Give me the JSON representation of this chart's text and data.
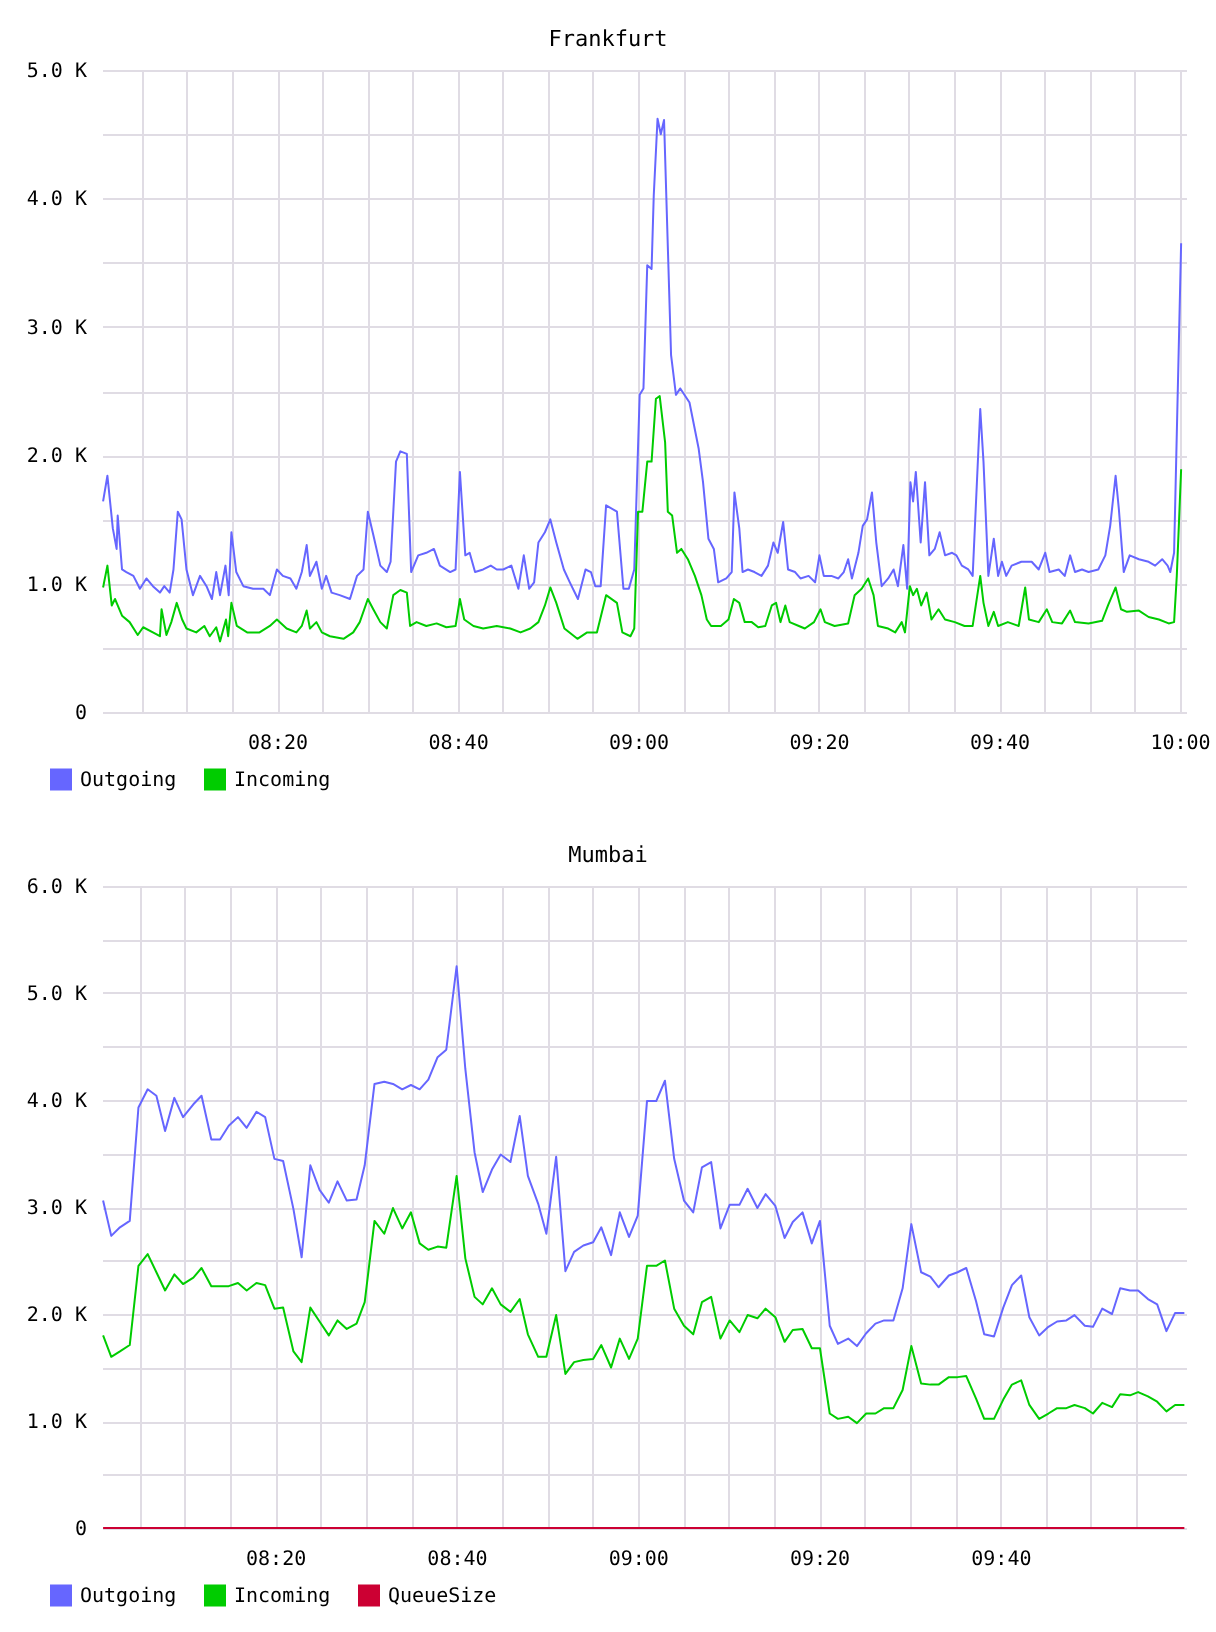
{
  "chart_data": [
    {
      "type": "line",
      "title": "Frankfurt",
      "xlim": [
        8.01,
        10.012
      ],
      "ylim": [
        0,
        5000
      ],
      "xticks": [
        {
          "value": 8.0833,
          "label": null
        },
        {
          "value": 8.1667,
          "label": null
        },
        {
          "value": 8.25,
          "label": null
        },
        {
          "value": 8.3333,
          "label": "08:20"
        },
        {
          "value": 8.4167,
          "label": null
        },
        {
          "value": 8.5,
          "label": null
        },
        {
          "value": 8.5833,
          "label": null
        },
        {
          "value": 8.6667,
          "label": "08:40"
        },
        {
          "value": 8.75,
          "label": null
        },
        {
          "value": 8.8333,
          "label": null
        },
        {
          "value": 8.9167,
          "label": null
        },
        {
          "value": 9,
          "label": "09:00"
        },
        {
          "value": 9.0833,
          "label": null
        },
        {
          "value": 9.1667,
          "label": null
        },
        {
          "value": 9.25,
          "label": null
        },
        {
          "value": 9.3333,
          "label": "09:20"
        },
        {
          "value": 9.4167,
          "label": null
        },
        {
          "value": 9.5,
          "label": null
        },
        {
          "value": 9.5833,
          "label": null
        },
        {
          "value": 9.6667,
          "label": "09:40"
        },
        {
          "value": 9.75,
          "label": null
        },
        {
          "value": 9.8333,
          "label": null
        },
        {
          "value": 9.9167,
          "label": null
        },
        {
          "value": 10,
          "label": "10:00"
        }
      ],
      "yticks": [
        0,
        {
          "value": 500,
          "label": null
        },
        {
          "value": 1000,
          "label": "1.0 K"
        },
        {
          "value": 1500,
          "label": null
        },
        {
          "value": 2000,
          "label": "2.0 K"
        },
        {
          "value": 2500,
          "label": null
        },
        {
          "value": 3000,
          "label": "3.0 K"
        },
        {
          "value": 3500,
          "label": null
        },
        {
          "value": 4000,
          "label": "4.0 K"
        },
        {
          "value": 4500,
          "label": null
        },
        {
          "value": 5000,
          "label": "5.0 K"
        }
      ],
      "grid": true,
      "legend": "bottom left",
      "series": [
        {
          "name": "Outgoing",
          "color": "#6666ff",
          "x": [
            8.012,
            8.02,
            8.03,
            8.037,
            8.039,
            8.047,
            8.055,
            8.068,
            8.08,
            8.092,
            8.104,
            8.117,
            8.125,
            8.135,
            8.142,
            8.15,
            8.157,
            8.166,
            8.178,
            8.191,
            8.203,
            8.213,
            8.221,
            8.228,
            8.238,
            8.244,
            8.249,
            8.258,
            8.271,
            8.289,
            8.308,
            8.32,
            8.333,
            8.344,
            8.358,
            8.369,
            8.379,
            8.388,
            8.394,
            8.406,
            8.416,
            8.424,
            8.434,
            8.449,
            8.468,
            8.481,
            8.493,
            8.501,
            8.511,
            8.524,
            8.536,
            8.543,
            8.553,
            8.561,
            8.573,
            8.581,
            8.594,
            8.609,
            8.623,
            8.634,
            8.653,
            8.663,
            8.671,
            8.681,
            8.689,
            8.699,
            8.714,
            8.728,
            8.739,
            8.751,
            8.766,
            8.779,
            8.789,
            8.799,
            8.808,
            8.816,
            8.828,
            8.838,
            8.849,
            8.863,
            8.874,
            8.889,
            8.903,
            8.913,
            8.921,
            8.931,
            8.941,
            8.961,
            8.973,
            8.983,
            8.993,
            9.003,
            9.01,
            9.017,
            9.025,
            9.029,
            9.036,
            9.042,
            9.048,
            9.061,
            9.07,
            9.078,
            9.095,
            9.112,
            9.12,
            9.13,
            9.14,
            9.148,
            9.163,
            9.173,
            9.178,
            9.187,
            9.193,
            9.203,
            9.215,
            9.228,
            9.24,
            9.25,
            9.258,
            9.268,
            9.277,
            9.29,
            9.3,
            9.315,
            9.327,
            9.335,
            9.343,
            9.357,
            9.37,
            9.38,
            9.388,
            9.395,
            9.407,
            9.415,
            9.423,
            9.432,
            9.44,
            9.45,
            9.462,
            9.472,
            9.48,
            9.49,
            9.497,
            9.503,
            9.508,
            9.513,
            9.522,
            9.53,
            9.538,
            9.548,
            9.557,
            9.567,
            9.58,
            9.588,
            9.598,
            9.61,
            9.618,
            9.632,
            9.638,
            9.647,
            9.657,
            9.665,
            9.672,
            9.68,
            9.69,
            9.708,
            9.727,
            9.74,
            9.752,
            9.76,
            9.777,
            9.788,
            9.798,
            9.807,
            9.82,
            9.832,
            9.85,
            9.863,
            9.872,
            9.882,
            9.888,
            9.897,
            9.908,
            9.925,
            9.943,
            9.955,
            9.968,
            9.978,
            9.983,
            9.99,
            10.003
          ],
          "values": [
            1640,
            1840,
            1430,
            1270,
            1530,
            1110,
            1090,
            1060,
            960,
            1040,
            980,
            930,
            980,
            930,
            1110,
            1560,
            1500,
            1110,
            910,
            1060,
            980,
            880,
            1090,
            910,
            1140,
            910,
            1400,
            1090,
            980,
            960,
            960,
            910,
            1110,
            1060,
            1040,
            960,
            1090,
            1300,
            1060,
            1170,
            960,
            1060,
            930,
            910,
            880,
            1060,
            1110,
            1560,
            1380,
            1140,
            1090,
            1170,
            1950,
            2030,
            2010,
            1090,
            1220,
            1240,
            1270,
            1140,
            1090,
            1110,
            1870,
            1220,
            1240,
            1090,
            1110,
            1140,
            1110,
            1110,
            1140,
            960,
            1220,
            960,
            1010,
            1320,
            1400,
            1500,
            1320,
            1110,
            1010,
            880,
            1110,
            1090,
            980,
            980,
            1610,
            1560,
            960,
            960,
            1110,
            2470,
            2520,
            3480,
            3450,
            4020,
            4620,
            4500,
            4610,
            2780,
            2470,
            2520,
            2410,
            2050,
            1790,
            1350,
            1270,
            1010,
            1040,
            1090,
            1710,
            1430,
            1090,
            1110,
            1090,
            1060,
            1140,
            1320,
            1240,
            1480,
            1110,
            1090,
            1040,
            1060,
            1010,
            1220,
            1060,
            1060,
            1040,
            1090,
            1190,
            1040,
            1240,
            1450,
            1500,
            1710,
            1320,
            980,
            1040,
            1110,
            980,
            1300,
            960,
            1790,
            1640,
            1870,
            1320,
            1790,
            1220,
            1270,
            1400,
            1220,
            1240,
            1220,
            1140,
            1110,
            1060,
            2360,
            1950,
            1060,
            1350,
            1060,
            1170,
            1060,
            1140,
            1170,
            1170,
            1110,
            1240,
            1090,
            1110,
            1060,
            1220,
            1090,
            1110,
            1090,
            1110,
            1220,
            1450,
            1840,
            1580,
            1090,
            1220,
            1190,
            1170,
            1140,
            1190,
            1140,
            1090,
            1240,
            3650
          ]
        },
        {
          "name": "Incoming",
          "color": "#00cc00",
          "x": [
            8.012,
            8.02,
            8.028,
            8.034,
            8.039,
            8.047,
            8.061,
            8.076,
            8.086,
            8.104,
            8.117,
            8.12,
            8.129,
            8.138,
            8.148,
            8.158,
            8.166,
            8.184,
            8.199,
            8.209,
            8.221,
            8.228,
            8.239,
            8.243,
            8.249,
            8.259,
            8.278,
            8.301,
            8.32,
            8.333,
            8.351,
            8.369,
            8.379,
            8.388,
            8.394,
            8.406,
            8.416,
            8.431,
            8.456,
            8.474,
            8.486,
            8.501,
            8.511,
            8.524,
            8.536,
            8.548,
            8.561,
            8.573,
            8.579,
            8.591,
            8.609,
            8.628,
            8.646,
            8.663,
            8.671,
            8.679,
            8.696,
            8.714,
            8.739,
            8.764,
            8.783,
            8.801,
            8.816,
            8.828,
            8.838,
            8.849,
            8.864,
            8.888,
            8.906,
            8.924,
            8.941,
            8.961,
            8.971,
            8.986,
            8.993,
            9.0,
            9.008,
            9.017,
            9.025,
            9.033,
            9.04,
            9.05,
            9.055,
            9.063,
            9.072,
            9.08,
            9.092,
            9.105,
            9.117,
            9.127,
            9.135,
            9.153,
            9.167,
            9.177,
            9.187,
            9.197,
            9.21,
            9.222,
            9.235,
            9.247,
            9.255,
            9.263,
            9.272,
            9.28,
            9.297,
            9.308,
            9.325,
            9.337,
            9.345,
            9.363,
            9.388,
            9.4,
            9.413,
            9.425,
            9.435,
            9.443,
            9.462,
            9.475,
            9.487,
            9.493,
            9.502,
            9.508,
            9.515,
            9.523,
            9.533,
            9.542,
            9.555,
            9.567,
            9.585,
            9.603,
            9.618,
            9.632,
            9.638,
            9.647,
            9.657,
            9.665,
            9.683,
            9.703,
            9.715,
            9.722,
            9.74,
            9.755,
            9.765,
            9.783,
            9.798,
            9.807,
            9.832,
            9.857,
            9.868,
            9.882,
            9.892,
            9.903,
            9.925,
            9.943,
            9.962,
            9.98,
            9.99,
            9.995,
            10.003
          ],
          "values": [
            970,
            1140,
            830,
            880,
            830,
            750,
            700,
            600,
            660,
            620,
            590,
            800,
            600,
            700,
            850,
            720,
            650,
            620,
            670,
            590,
            660,
            550,
            720,
            590,
            850,
            670,
            620,
            620,
            670,
            720,
            650,
            620,
            670,
            790,
            650,
            700,
            620,
            590,
            570,
            620,
            700,
            880,
            800,
            700,
            650,
            910,
            950,
            930,
            670,
            700,
            670,
            690,
            660,
            670,
            880,
            720,
            670,
            650,
            670,
            650,
            620,
            650,
            700,
            830,
            970,
            850,
            650,
            570,
            620,
            620,
            910,
            850,
            620,
            590,
            650,
            1560,
            1560,
            1950,
            1950,
            2440,
            2460,
            2100,
            1560,
            1530,
            1240,
            1270,
            1190,
            1060,
            910,
            720,
            670,
            670,
            720,
            880,
            850,
            700,
            700,
            660,
            670,
            830,
            850,
            700,
            830,
            700,
            670,
            650,
            700,
            800,
            700,
            670,
            690,
            910,
            960,
            1040,
            910,
            670,
            650,
            620,
            700,
            620,
            980,
            910,
            960,
            830,
            930,
            720,
            800,
            720,
            700,
            670,
            670,
            1060,
            850,
            670,
            780,
            670,
            700,
            670,
            970,
            720,
            700,
            800,
            700,
            690,
            790,
            700,
            690,
            710,
            830,
            970,
            800,
            780,
            790,
            740,
            720,
            690,
            700,
            1060,
            1890
          ]
        }
      ]
    },
    {
      "type": "line",
      "title": "Mumbai",
      "xlim": [
        8.015,
        10.008
      ],
      "ylim": [
        0,
        6000
      ],
      "xticks": [
        {
          "value": 8.0833,
          "label": null
        },
        {
          "value": 8.1667,
          "label": null
        },
        {
          "value": 8.25,
          "label": null
        },
        {
          "value": 8.3333,
          "label": "08:20"
        },
        {
          "value": 8.4167,
          "label": null
        },
        {
          "value": 8.5,
          "label": null
        },
        {
          "value": 8.5833,
          "label": null
        },
        {
          "value": 8.6667,
          "label": "08:40"
        },
        {
          "value": 8.75,
          "label": null
        },
        {
          "value": 8.8333,
          "label": null
        },
        {
          "value": 8.9167,
          "label": null
        },
        {
          "value": 9,
          "label": "09:00"
        },
        {
          "value": 9.0833,
          "label": null
        },
        {
          "value": 9.1667,
          "label": null
        },
        {
          "value": 9.25,
          "label": null
        },
        {
          "value": 9.3333,
          "label": "09:20"
        },
        {
          "value": 9.4167,
          "label": null
        },
        {
          "value": 9.5,
          "label": null
        },
        {
          "value": 9.5833,
          "label": null
        },
        {
          "value": 9.6667,
          "label": "09:40"
        },
        {
          "value": 9.75,
          "label": null
        },
        {
          "value": 9.8333,
          "label": null
        },
        {
          "value": 9.9167,
          "label": null
        }
      ],
      "yticks": [
        0,
        {
          "value": 500,
          "label": null
        },
        {
          "value": 1000,
          "label": "1.0 K"
        },
        {
          "value": 1500,
          "label": null
        },
        {
          "value": 2000,
          "label": "2.0 K"
        },
        {
          "value": 2500,
          "label": null
        },
        {
          "value": 3000,
          "label": "3.0 K"
        },
        {
          "value": 3500,
          "label": null
        },
        {
          "value": 4000,
          "label": "4.0 K"
        },
        {
          "value": 4500,
          "label": null
        },
        {
          "value": 5000,
          "label": "5.0 K"
        },
        {
          "value": 5500,
          "label": null
        },
        {
          "value": 6000,
          "label": "6.0 K"
        }
      ],
      "grid": true,
      "legend": "bottom left",
      "x": [
        8.017,
        8.032,
        8.048,
        8.066,
        8.082,
        8.099,
        8.115,
        8.131,
        8.148,
        8.164,
        8.183,
        8.198,
        8.216,
        8.232,
        8.248,
        8.265,
        8.281,
        8.299,
        8.315,
        8.332,
        8.348,
        8.367,
        8.382,
        8.398,
        8.415,
        8.432,
        8.448,
        8.465,
        8.483,
        8.498,
        8.516,
        8.534,
        8.55,
        8.567,
        8.583,
        8.599,
        8.615,
        8.632,
        8.648,
        8.667,
        8.683,
        8.7,
        8.715,
        8.732,
        8.748,
        8.766,
        8.783,
        8.798,
        8.817,
        8.832,
        8.85,
        8.867,
        8.883,
        8.9,
        8.918,
        8.933,
        8.951,
        8.967,
        8.984,
        9.0,
        9.017,
        9.034,
        9.05,
        9.067,
        9.085,
        9.102,
        9.118,
        9.135,
        9.152,
        9.169,
        9.187,
        9.202,
        9.22,
        9.235,
        9.253,
        9.27,
        9.285,
        9.303,
        9.32,
        9.335,
        9.353,
        9.368,
        9.387,
        9.403,
        9.42,
        9.437,
        9.453,
        9.47,
        9.487,
        9.503,
        9.521,
        9.538,
        9.553,
        9.572,
        9.588,
        9.604,
        9.622,
        9.637,
        9.655,
        9.672,
        9.688,
        9.705,
        9.72,
        9.738,
        9.755,
        9.771,
        9.788,
        9.803,
        9.822,
        9.837,
        9.854,
        9.872,
        9.887,
        9.905,
        9.92,
        9.938,
        9.955,
        9.972,
        9.988,
        10.005
      ],
      "series": [
        {
          "name": "Outgoing",
          "color": "#6666ff",
          "values": [
            3060,
            2730,
            2810,
            2870,
            3930,
            4100,
            4040,
            3710,
            4020,
            3840,
            3960,
            4040,
            3630,
            3630,
            3760,
            3840,
            3740,
            3890,
            3840,
            3450,
            3430,
            2980,
            2530,
            3390,
            3160,
            3040,
            3240,
            3060,
            3070,
            3390,
            4150,
            4170,
            4150,
            4100,
            4140,
            4100,
            4190,
            4400,
            4470,
            5250,
            4290,
            3510,
            3140,
            3350,
            3490,
            3420,
            3850,
            3290,
            3030,
            2750,
            3470,
            2400,
            2580,
            2640,
            2670,
            2810,
            2550,
            2950,
            2720,
            2920,
            3990,
            3990,
            4180,
            3450,
            3060,
            2950,
            3370,
            3420,
            2800,
            3020,
            3020,
            3170,
            2990,
            3120,
            3010,
            2710,
            2860,
            2950,
            2660,
            2870,
            1890,
            1720,
            1770,
            1700,
            1820,
            1910,
            1940,
            1940,
            2240,
            2840,
            2390,
            2350,
            2250,
            2360,
            2390,
            2430,
            2120,
            1810,
            1790,
            2060,
            2270,
            2360,
            1970,
            1800,
            1880,
            1930,
            1940,
            1990,
            1890,
            1880,
            2050,
            2000,
            2240,
            2220,
            2220,
            2140,
            2090,
            1840,
            2010,
            2010
          ]
        },
        {
          "name": "Incoming",
          "color": "#00cc00",
          "values": [
            1800,
            1600,
            1650,
            1710,
            2450,
            2560,
            2390,
            2220,
            2370,
            2280,
            2340,
            2430,
            2260,
            2260,
            2260,
            2290,
            2220,
            2290,
            2270,
            2050,
            2060,
            1650,
            1550,
            2060,
            1930,
            1800,
            1940,
            1860,
            1910,
            2110,
            2870,
            2750,
            2990,
            2800,
            2950,
            2660,
            2600,
            2630,
            2620,
            3290,
            2520,
            2160,
            2090,
            2240,
            2090,
            2020,
            2140,
            1810,
            1600,
            1600,
            1990,
            1440,
            1550,
            1570,
            1580,
            1710,
            1500,
            1770,
            1580,
            1770,
            2450,
            2450,
            2500,
            2050,
            1890,
            1810,
            2110,
            2160,
            1770,
            1940,
            1830,
            1990,
            1960,
            2050,
            1970,
            1740,
            1850,
            1860,
            1680,
            1680,
            1070,
            1020,
            1040,
            980,
            1070,
            1070,
            1120,
            1120,
            1290,
            1700,
            1350,
            1340,
            1340,
            1410,
            1410,
            1420,
            1210,
            1020,
            1020,
            1200,
            1340,
            1380,
            1150,
            1020,
            1070,
            1120,
            1120,
            1150,
            1120,
            1070,
            1170,
            1130,
            1250,
            1240,
            1270,
            1230,
            1180,
            1090,
            1150,
            1150
          ]
        },
        {
          "name": "QueueSize",
          "color": "#cc0033",
          "x": [
            8.017,
            10.005
          ],
          "values": [
            0,
            0
          ]
        }
      ]
    }
  ]
}
